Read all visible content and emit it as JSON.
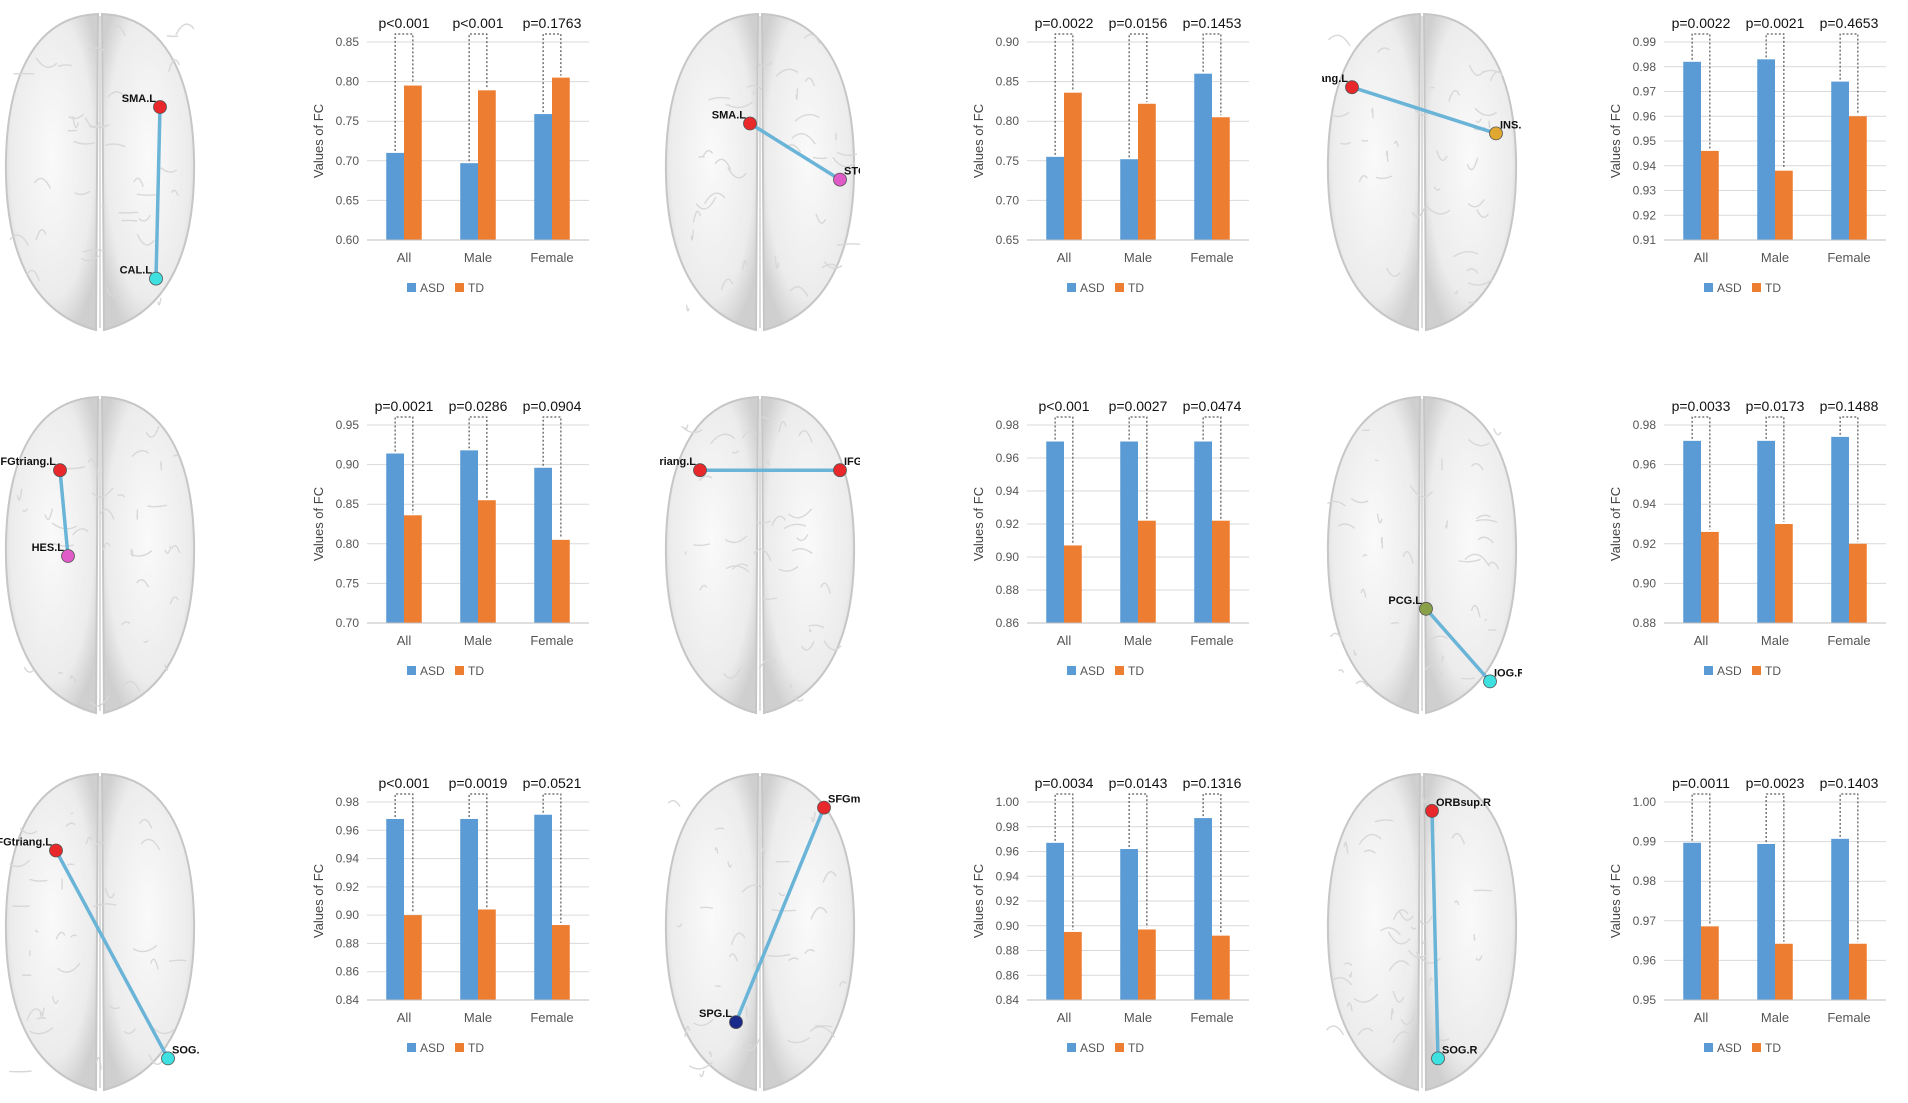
{
  "legend": {
    "asd_label": "ASD",
    "td_label": "TD"
  },
  "colors": {
    "asd": "#5b9bd5",
    "td": "#ed7d31",
    "edge": "#6ab4d8"
  },
  "brains": [
    {
      "nodes": [
        {
          "label": "SMA.L",
          "color": "#e8282b"
        },
        {
          "label": "CAL.L",
          "color": "#3ee0e0"
        }
      ]
    },
    {
      "nodes": [
        {
          "label": "SMA.L",
          "color": "#e8282b"
        },
        {
          "label": "STG.R",
          "color": "#e05ac8"
        }
      ]
    },
    {
      "nodes": [
        {
          "label": "IFGtriang.L",
          "color": "#e8282b"
        },
        {
          "label": "INS.R",
          "color": "#e0a830"
        }
      ]
    },
    {
      "nodes": [
        {
          "label": "IFGtriang.L",
          "color": "#e8282b"
        },
        {
          "label": "HES.L",
          "color": "#e05ac8"
        }
      ]
    },
    {
      "nodes": [
        {
          "label": "IFGtriang.L",
          "color": "#e8282b"
        },
        {
          "label": "IFGtriang.R",
          "color": "#e8282b"
        }
      ]
    },
    {
      "nodes": [
        {
          "label": "PCG.L",
          "color": "#8aa048"
        },
        {
          "label": "IOG.R",
          "color": "#3ee0e0"
        }
      ]
    },
    {
      "nodes": [
        {
          "label": "IFGtriang.L",
          "color": "#e8282b"
        },
        {
          "label": "SOG.R",
          "color": "#3ee0e0"
        }
      ]
    },
    {
      "nodes": [
        {
          "label": "SFGmed.R",
          "color": "#e8282b"
        },
        {
          "label": "SPG.L",
          "color": "#1a2a8a"
        }
      ]
    },
    {
      "nodes": [
        {
          "label": "ORBsup.R",
          "color": "#e8282b"
        },
        {
          "label": "SOG.R",
          "color": "#3ee0e0"
        }
      ]
    }
  ],
  "chart_data": [
    {
      "type": "bar",
      "ylabel": "Values of FC",
      "categories": [
        "All",
        "Male",
        "Female"
      ],
      "series": [
        {
          "name": "ASD",
          "values": [
            0.71,
            0.697,
            0.759
          ]
        },
        {
          "name": "TD",
          "values": [
            0.795,
            0.789,
            0.805
          ]
        }
      ],
      "pvalues": [
        "p<0.001",
        "p<0.001",
        "p=0.1763"
      ],
      "ylim": [
        0.6,
        0.85
      ],
      "yticks": [
        "0.60",
        "0.65",
        "0.70",
        "0.75",
        "0.80",
        "0.85"
      ]
    },
    {
      "type": "bar",
      "ylabel": "Values of FC",
      "categories": [
        "All",
        "Male",
        "Female"
      ],
      "series": [
        {
          "name": "ASD",
          "values": [
            0.755,
            0.752,
            0.86
          ]
        },
        {
          "name": "TD",
          "values": [
            0.836,
            0.822,
            0.805
          ]
        }
      ],
      "pvalues": [
        "p=0.0022",
        "p=0.0156",
        "p=0.1453"
      ],
      "ylim": [
        0.65,
        0.9
      ],
      "yticks": [
        "0.65",
        "0.70",
        "0.75",
        "0.80",
        "0.85",
        "0.90"
      ]
    },
    {
      "type": "bar",
      "ylabel": "Values of FC",
      "categories": [
        "All",
        "Male",
        "Female"
      ],
      "series": [
        {
          "name": "ASD",
          "values": [
            0.982,
            0.983,
            0.974
          ]
        },
        {
          "name": "TD",
          "values": [
            0.946,
            0.938,
            0.96
          ]
        }
      ],
      "pvalues": [
        "p=0.0022",
        "p=0.0021",
        "p=0.4653"
      ],
      "ylim": [
        0.91,
        0.99
      ],
      "yticks": [
        "0.91",
        "0.92",
        "0.93",
        "0.94",
        "0.95",
        "0.96",
        "0.97",
        "0.98",
        "0.99"
      ]
    },
    {
      "type": "bar",
      "ylabel": "Values of FC",
      "categories": [
        "All",
        "Male",
        "Female"
      ],
      "series": [
        {
          "name": "ASD",
          "values": [
            0.914,
            0.918,
            0.896
          ]
        },
        {
          "name": "TD",
          "values": [
            0.836,
            0.855,
            0.805
          ]
        }
      ],
      "pvalues": [
        "p=0.0021",
        "p=0.0286",
        "p=0.0904"
      ],
      "ylim": [
        0.7,
        0.95
      ],
      "yticks": [
        "0.70",
        "0.75",
        "0.80",
        "0.85",
        "0.90",
        "0.95"
      ]
    },
    {
      "type": "bar",
      "ylabel": "Values of FC",
      "categories": [
        "All",
        "Male",
        "Female"
      ],
      "series": [
        {
          "name": "ASD",
          "values": [
            0.97,
            0.97,
            0.97
          ]
        },
        {
          "name": "TD",
          "values": [
            0.907,
            0.922,
            0.922
          ]
        }
      ],
      "pvalues": [
        "p<0.001",
        "p=0.0027",
        "p=0.0474"
      ],
      "ylim": [
        0.86,
        0.98
      ],
      "yticks": [
        "0.86",
        "0.88",
        "0.90",
        "0.92",
        "0.94",
        "0.96",
        "0.98"
      ]
    },
    {
      "type": "bar",
      "ylabel": "Values of FC",
      "categories": [
        "All",
        "Male",
        "Female"
      ],
      "series": [
        {
          "name": "ASD",
          "values": [
            0.972,
            0.972,
            0.974
          ]
        },
        {
          "name": "TD",
          "values": [
            0.926,
            0.93,
            0.92
          ]
        }
      ],
      "pvalues": [
        "p=0.0033",
        "p=0.0173",
        "p=0.1488"
      ],
      "ylim": [
        0.88,
        0.98
      ],
      "yticks": [
        "0.88",
        "0.90",
        "0.92",
        "0.94",
        "0.96",
        "0.98"
      ]
    },
    {
      "type": "bar",
      "ylabel": "Values of FC",
      "categories": [
        "All",
        "Male",
        "Female"
      ],
      "series": [
        {
          "name": "ASD",
          "values": [
            0.968,
            0.968,
            0.971
          ]
        },
        {
          "name": "TD",
          "values": [
            0.9,
            0.904,
            0.893
          ]
        }
      ],
      "pvalues": [
        "p<0.001",
        "p=0.0019",
        "p=0.0521"
      ],
      "ylim": [
        0.84,
        0.98
      ],
      "yticks": [
        "0.84",
        "0.86",
        "0.88",
        "0.90",
        "0.92",
        "0.94",
        "0.96",
        "0.98"
      ]
    },
    {
      "type": "bar",
      "ylabel": "Values of FC",
      "categories": [
        "All",
        "Male",
        "Female"
      ],
      "series": [
        {
          "name": "ASD",
          "values": [
            0.967,
            0.962,
            0.987
          ]
        },
        {
          "name": "TD",
          "values": [
            0.895,
            0.897,
            0.892
          ]
        }
      ],
      "pvalues": [
        "p=0.0034",
        "p=0.0143",
        "p=0.1316"
      ],
      "ylim": [
        0.84,
        1.0
      ],
      "yticks": [
        "0.84",
        "0.86",
        "0.88",
        "0.90",
        "0.92",
        "0.94",
        "0.96",
        "0.98",
        "1.00"
      ]
    },
    {
      "type": "bar",
      "ylabel": "Values of FC",
      "categories": [
        "All",
        "Male",
        "Female"
      ],
      "series": [
        {
          "name": "ASD",
          "values": [
            0.9897,
            0.9894,
            0.9907
          ]
        },
        {
          "name": "TD",
          "values": [
            0.9686,
            0.9642,
            0.9642
          ]
        }
      ],
      "pvalues": [
        "p=0.0011",
        "p=0.0023",
        "p=0.1403"
      ],
      "ylim": [
        0.95,
        1.0
      ],
      "yticks": [
        "0.95",
        "0.96",
        "0.97",
        "0.98",
        "0.99",
        "1.00"
      ]
    }
  ]
}
